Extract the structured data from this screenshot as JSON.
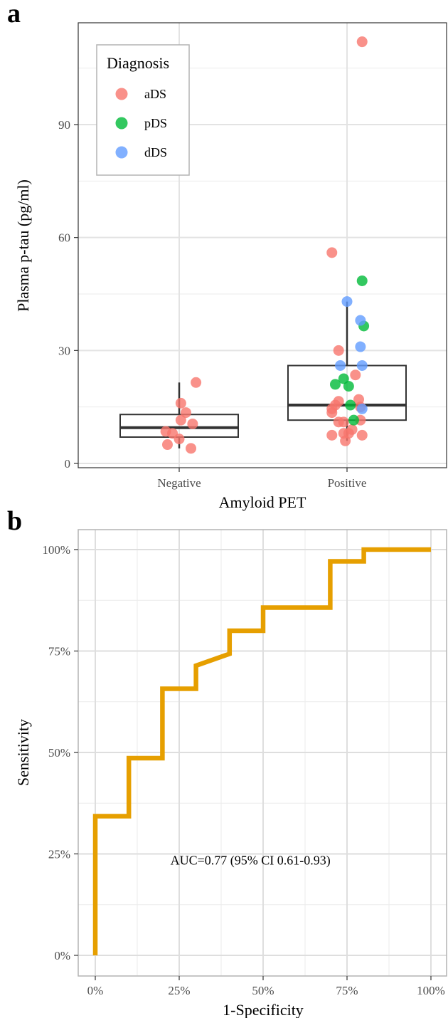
{
  "panels": {
    "a": "a",
    "b": "b"
  },
  "chart_data": [
    {
      "type": "box",
      "panel": "a",
      "xlabel": "Amyloid PET",
      "ylabel": "Plasma p-tau (pg/ml)",
      "categories": [
        "Negative",
        "Positive"
      ],
      "ylim": [
        -1,
        116
      ],
      "yticks": [
        0,
        30,
        60,
        90
      ],
      "ytick_labels": [
        "0",
        "30",
        "60",
        "90"
      ],
      "grid": true,
      "legend": {
        "title": "Diagnosis",
        "placement": "top-left",
        "entries": [
          {
            "label": "aDS",
            "color": "#F8766D"
          },
          {
            "label": "pDS",
            "color": "#00BA38"
          },
          {
            "label": "dDS",
            "color": "#619CFF"
          }
        ]
      },
      "boxes": [
        {
          "category": "Negative",
          "whisker_low": 4,
          "q1": 7,
          "median": 9.5,
          "q3": 13,
          "whisker_high": 21.5
        },
        {
          "category": "Positive",
          "whisker_low": 6,
          "q1": 11.5,
          "median": 15.5,
          "q3": 26,
          "whisker_high": 43
        }
      ],
      "points": [
        {
          "group": "aDS",
          "category": "Negative",
          "jitter": 0.1,
          "y": 21.5
        },
        {
          "group": "aDS",
          "category": "Negative",
          "jitter": 0.01,
          "y": 16
        },
        {
          "group": "aDS",
          "category": "Negative",
          "jitter": 0.04,
          "y": 13.5
        },
        {
          "group": "aDS",
          "category": "Negative",
          "jitter": 0.01,
          "y": 11.5
        },
        {
          "group": "aDS",
          "category": "Negative",
          "jitter": 0.08,
          "y": 10.5
        },
        {
          "group": "aDS",
          "category": "Negative",
          "jitter": -0.08,
          "y": 8.5
        },
        {
          "group": "aDS",
          "category": "Negative",
          "jitter": -0.04,
          "y": 8
        },
        {
          "group": "aDS",
          "category": "Negative",
          "jitter": 0.0,
          "y": 6.5
        },
        {
          "group": "aDS",
          "category": "Negative",
          "jitter": -0.07,
          "y": 5
        },
        {
          "group": "aDS",
          "category": "Negative",
          "jitter": 0.07,
          "y": 4
        },
        {
          "group": "aDS",
          "category": "Positive",
          "jitter": 0.09,
          "y": 112
        },
        {
          "group": "aDS",
          "category": "Positive",
          "jitter": -0.09,
          "y": 56
        },
        {
          "group": "aDS",
          "category": "Positive",
          "jitter": -0.05,
          "y": 30
        },
        {
          "group": "aDS",
          "category": "Positive",
          "jitter": 0.05,
          "y": 23.5
        },
        {
          "group": "aDS",
          "category": "Positive",
          "jitter": 0.07,
          "y": 17
        },
        {
          "group": "aDS",
          "category": "Positive",
          "jitter": -0.05,
          "y": 16.5
        },
        {
          "group": "aDS",
          "category": "Positive",
          "jitter": -0.07,
          "y": 15.5
        },
        {
          "group": "aDS",
          "category": "Positive",
          "jitter": 0.08,
          "y": 15
        },
        {
          "group": "aDS",
          "category": "Positive",
          "jitter": -0.09,
          "y": 14.5
        },
        {
          "group": "aDS",
          "category": "Positive",
          "jitter": -0.09,
          "y": 13.5
        },
        {
          "group": "aDS",
          "category": "Positive",
          "jitter": 0.08,
          "y": 11.5
        },
        {
          "group": "aDS",
          "category": "Positive",
          "jitter": -0.05,
          "y": 11
        },
        {
          "group": "aDS",
          "category": "Positive",
          "jitter": -0.02,
          "y": 11
        },
        {
          "group": "aDS",
          "category": "Positive",
          "jitter": 0.03,
          "y": 9
        },
        {
          "group": "aDS",
          "category": "Positive",
          "jitter": 0.01,
          "y": 8
        },
        {
          "group": "aDS",
          "category": "Positive",
          "jitter": -0.02,
          "y": 8
        },
        {
          "group": "aDS",
          "category": "Positive",
          "jitter": -0.09,
          "y": 7.5
        },
        {
          "group": "aDS",
          "category": "Positive",
          "jitter": 0.09,
          "y": 7.5
        },
        {
          "group": "aDS",
          "category": "Positive",
          "jitter": -0.01,
          "y": 6
        },
        {
          "group": "pDS",
          "category": "Positive",
          "jitter": 0.09,
          "y": 48.5
        },
        {
          "group": "pDS",
          "category": "Positive",
          "jitter": 0.1,
          "y": 36.5
        },
        {
          "group": "pDS",
          "category": "Positive",
          "jitter": -0.02,
          "y": 22.5
        },
        {
          "group": "pDS",
          "category": "Positive",
          "jitter": -0.07,
          "y": 21
        },
        {
          "group": "pDS",
          "category": "Positive",
          "jitter": 0.01,
          "y": 20.5
        },
        {
          "group": "pDS",
          "category": "Positive",
          "jitter": 0.02,
          "y": 15.5
        },
        {
          "group": "pDS",
          "category": "Positive",
          "jitter": 0.04,
          "y": 11.5
        },
        {
          "group": "dDS",
          "category": "Positive",
          "jitter": 0.0,
          "y": 43
        },
        {
          "group": "dDS",
          "category": "Positive",
          "jitter": 0.08,
          "y": 38
        },
        {
          "group": "dDS",
          "category": "Positive",
          "jitter": 0.08,
          "y": 31
        },
        {
          "group": "dDS",
          "category": "Positive",
          "jitter": 0.09,
          "y": 26
        },
        {
          "group": "dDS",
          "category": "Positive",
          "jitter": -0.04,
          "y": 26
        },
        {
          "group": "dDS",
          "category": "Positive",
          "jitter": 0.09,
          "y": 14.5
        }
      ]
    },
    {
      "type": "line",
      "panel": "b",
      "xlabel": "1-Specificity",
      "ylabel": "Sensitivity",
      "xlim": [
        -0.05,
        1.05
      ],
      "ylim": [
        -0.05,
        1.05
      ],
      "xticks": [
        0,
        0.25,
        0.5,
        0.75,
        1
      ],
      "xtick_labels": [
        "0%",
        "25%",
        "50%",
        "75%",
        "100%"
      ],
      "yticks": [
        0,
        0.25,
        0.5,
        0.75,
        1
      ],
      "ytick_labels": [
        "0%",
        "25%",
        "50%",
        "75%",
        "100%"
      ],
      "grid": true,
      "line_color": "#E69F00",
      "annotation": {
        "text": "AUC=0.77 (95% CI 0.61-0.93)",
        "x": 0.6,
        "y": 0.22
      },
      "points": [
        [
          0,
          0
        ],
        [
          0,
          0.343
        ],
        [
          0.1,
          0.343
        ],
        [
          0.1,
          0.486
        ],
        [
          0.2,
          0.486
        ],
        [
          0.2,
          0.657
        ],
        [
          0.3,
          0.657
        ],
        [
          0.3,
          0.714
        ],
        [
          0.4,
          0.743
        ],
        [
          0.4,
          0.8
        ],
        [
          0.5,
          0.8
        ],
        [
          0.5,
          0.857
        ],
        [
          0.7,
          0.857
        ],
        [
          0.7,
          0.971
        ],
        [
          0.8,
          0.971
        ],
        [
          0.8,
          1
        ],
        [
          1,
          1
        ]
      ]
    }
  ]
}
